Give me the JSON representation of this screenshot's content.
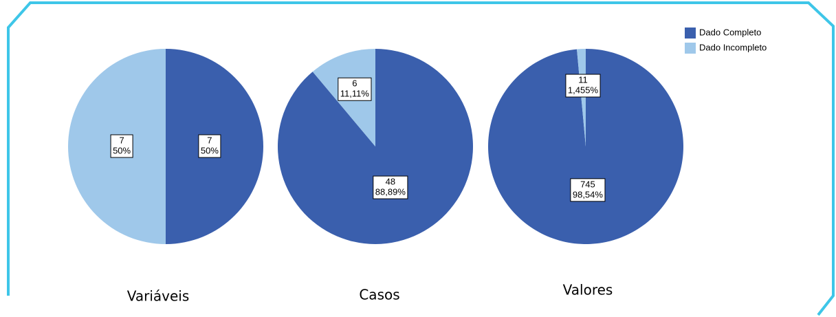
{
  "legend": [
    {
      "name": "Dado Completo",
      "color": "#3a5fad"
    },
    {
      "name": "Dado Incompleto",
      "color": "#9fc8ea"
    }
  ],
  "chart_data": [
    {
      "type": "pie",
      "title": "Variáveis",
      "values": [
        7,
        7
      ],
      "percent": [
        50,
        50
      ],
      "percent_labels": [
        "50%",
        "50%"
      ]
    },
    {
      "type": "pie",
      "title": "Casos",
      "values": [
        48,
        6
      ],
      "percent": [
        88.89,
        11.11
      ],
      "percent_labels": [
        "88,89%",
        "11,11%"
      ]
    },
    {
      "type": "pie",
      "title": "Valores",
      "values": [
        745,
        11
      ],
      "percent": [
        98.54,
        1.455
      ],
      "percent_labels": [
        "98,54%",
        "1,455%"
      ]
    }
  ]
}
